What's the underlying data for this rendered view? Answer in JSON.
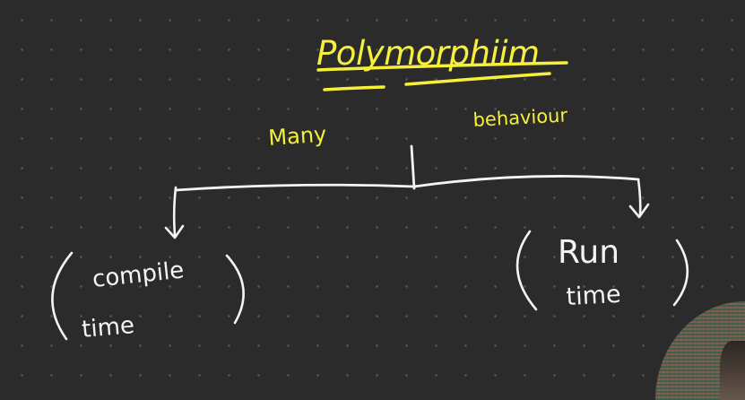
{
  "board": {
    "title": "Polymorphiim",
    "word_left": "Many",
    "word_right": "behaviour",
    "branch_left": [
      "compile",
      "time"
    ],
    "branch_right": [
      "Run",
      "time"
    ]
  },
  "colors": {
    "background": "#2b2b2c",
    "title_ink": "#f6f03a",
    "chalk": "#f4f4f4"
  }
}
